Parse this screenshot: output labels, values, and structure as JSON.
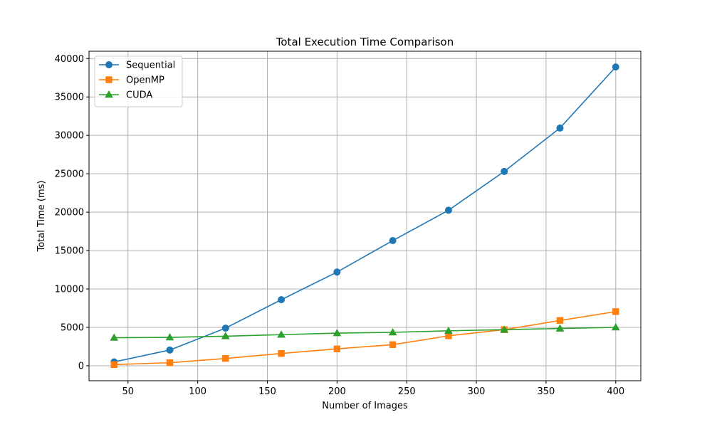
{
  "chart_data": {
    "type": "line",
    "title": "Total Execution Time Comparison",
    "xlabel": "Number of Images",
    "ylabel": "Total Time (ms)",
    "xlim": [
      22,
      418
    ],
    "ylim": [
      -1950,
      40950
    ],
    "xticks": [
      50,
      100,
      150,
      200,
      250,
      300,
      350,
      400
    ],
    "yticks": [
      0,
      5000,
      10000,
      15000,
      20000,
      25000,
      30000,
      35000,
      40000
    ],
    "grid": true,
    "legend_position": "top-left",
    "x": [
      40,
      80,
      120,
      160,
      200,
      240,
      280,
      320,
      360,
      400
    ],
    "series": [
      {
        "name": "Sequential",
        "color": "#1f77b4",
        "marker": "circle",
        "values": [
          500,
          2050,
          4900,
          8600,
          12200,
          16300,
          20250,
          25300,
          30950,
          38900
        ]
      },
      {
        "name": "OpenMP",
        "color": "#ff7f0e",
        "marker": "square",
        "values": [
          150,
          400,
          950,
          1600,
          2200,
          2750,
          3900,
          4700,
          5900,
          7050
        ]
      },
      {
        "name": "CUDA",
        "color": "#2ca02c",
        "marker": "triangle",
        "values": [
          3650,
          3700,
          3850,
          4050,
          4250,
          4350,
          4550,
          4700,
          4850,
          5000
        ]
      }
    ]
  }
}
